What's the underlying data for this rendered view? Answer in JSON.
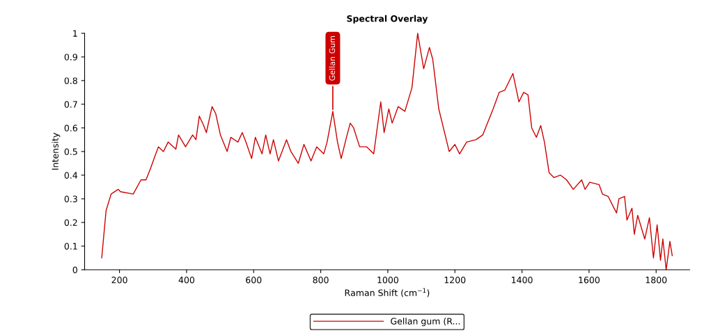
{
  "chart_data": {
    "type": "line",
    "title": "Spectral Overlay",
    "xlabel": "Raman Shift (cm$^{−1}$)",
    "ylabel": "Intensity",
    "x": [
      147,
      160,
      175,
      196,
      203,
      241,
      264,
      279,
      293,
      303,
      316,
      331,
      345,
      368,
      376,
      397,
      418,
      428,
      438,
      451,
      459,
      476,
      487,
      501,
      521,
      532,
      553,
      566,
      577,
      594,
      605,
      625,
      636,
      649,
      659,
      674,
      698,
      711,
      733,
      750,
      771,
      788,
      809,
      819,
      836,
      850,
      861,
      875,
      888,
      898,
      916,
      937,
      958,
      979,
      989,
      1003,
      1013,
      1031,
      1051,
      1072,
      1089,
      1107,
      1124,
      1134,
      1152,
      1183,
      1200,
      1214,
      1235,
      1263,
      1283,
      1297,
      1314,
      1332,
      1349,
      1373,
      1391,
      1405,
      1418,
      1429,
      1443,
      1456,
      1467,
      1481,
      1495,
      1515,
      1533,
      1553,
      1578,
      1588,
      1602,
      1630,
      1640,
      1657,
      1671,
      1682,
      1689,
      1706,
      1713,
      1728,
      1735,
      1745,
      1766,
      1780,
      1792,
      1803,
      1813,
      1820,
      1830,
      1841,
      1848
    ],
    "series": [
      {
        "name": "Gellan gum (R...",
        "color": "#cc0000",
        "values": [
          0.05,
          0.25,
          0.32,
          0.34,
          0.33,
          0.32,
          0.38,
          0.38,
          0.43,
          0.47,
          0.52,
          0.5,
          0.54,
          0.51,
          0.57,
          0.52,
          0.57,
          0.55,
          0.65,
          0.61,
          0.58,
          0.69,
          0.66,
          0.57,
          0.5,
          0.56,
          0.54,
          0.58,
          0.54,
          0.47,
          0.56,
          0.49,
          0.57,
          0.49,
          0.55,
          0.46,
          0.55,
          0.5,
          0.45,
          0.53,
          0.46,
          0.52,
          0.49,
          0.54,
          0.67,
          0.54,
          0.47,
          0.55,
          0.62,
          0.6,
          0.52,
          0.52,
          0.49,
          0.71,
          0.58,
          0.68,
          0.62,
          0.69,
          0.67,
          0.77,
          1.0,
          0.85,
          0.94,
          0.89,
          0.68,
          0.5,
          0.53,
          0.49,
          0.54,
          0.55,
          0.57,
          0.62,
          0.68,
          0.75,
          0.76,
          0.83,
          0.71,
          0.75,
          0.74,
          0.6,
          0.56,
          0.61,
          0.54,
          0.41,
          0.39,
          0.4,
          0.38,
          0.34,
          0.38,
          0.34,
          0.37,
          0.36,
          0.32,
          0.31,
          0.27,
          0.24,
          0.3,
          0.31,
          0.21,
          0.26,
          0.15,
          0.23,
          0.13,
          0.22,
          0.05,
          0.19,
          0.04,
          0.13,
          0.0,
          0.12,
          0.06
        ]
      }
    ],
    "xlim": [
      96,
      1900
    ],
    "ylim": [
      0,
      1
    ],
    "xticks": [
      200,
      400,
      600,
      800,
      1000,
      1200,
      1400,
      1600,
      1800
    ],
    "yticks": [
      0,
      0.1,
      0.2,
      0.3,
      0.4,
      0.5,
      0.6,
      0.7,
      0.8,
      0.9,
      1
    ],
    "annotations": [
      {
        "text": "Gellan Gum",
        "x": 836,
        "y": 0.67
      }
    ],
    "grid": false,
    "legend": "bottom",
    "marker": "none",
    "line_style": "solid"
  }
}
